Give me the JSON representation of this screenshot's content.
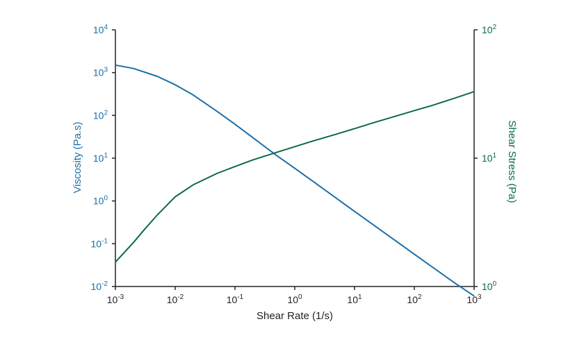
{
  "chart_data": {
    "type": "line",
    "title": "",
    "xlabel": "Shear Rate (1/s)",
    "ylabel_left": "Viscosity (Pa.s)",
    "ylabel_right": "Shear Stress (Pa)",
    "x_scale": "log",
    "y_left_scale": "log",
    "y_right_scale": "log",
    "xlim": [
      0.001,
      1000
    ],
    "ylim_left": [
      0.01,
      10000
    ],
    "ylim_right": [
      1,
      100
    ],
    "x_ticks": [
      {
        "base": "10",
        "exp": "-3"
      },
      {
        "base": "10",
        "exp": "-2"
      },
      {
        "base": "10",
        "exp": "-1"
      },
      {
        "base": "10",
        "exp": "0"
      },
      {
        "base": "10",
        "exp": "1"
      },
      {
        "base": "10",
        "exp": "2"
      },
      {
        "base": "10",
        "exp": "3"
      }
    ],
    "y_left_ticks": [
      {
        "base": "10",
        "exp": "-2"
      },
      {
        "base": "10",
        "exp": "-1"
      },
      {
        "base": "10",
        "exp": "0"
      },
      {
        "base": "10",
        "exp": "1"
      },
      {
        "base": "10",
        "exp": "2"
      },
      {
        "base": "10",
        "exp": "3"
      },
      {
        "base": "10",
        "exp": "4"
      }
    ],
    "y_right_ticks": [
      {
        "base": "10",
        "exp": "0"
      },
      {
        "base": "10",
        "exp": "1"
      },
      {
        "base": "10",
        "exp": "2"
      }
    ],
    "grid": false,
    "legend": "none",
    "colors": {
      "axis": "#222222",
      "viscosity": "#1a6fa8",
      "stress": "#0a6b45"
    },
    "series": [
      {
        "axis": "left",
        "x": [
          0.001,
          0.002,
          0.005,
          0.01,
          0.02,
          0.05,
          0.1,
          0.2,
          0.5,
          1,
          2,
          5,
          10,
          20,
          50,
          100,
          200,
          500,
          1000
        ],
        "values": [
          1500,
          1250,
          820,
          520,
          300,
          125,
          62,
          30,
          11.5,
          5.8,
          2.9,
          1.15,
          0.57,
          0.285,
          0.114,
          0.057,
          0.0285,
          0.0115,
          0.006
        ]
      },
      {
        "axis": "right",
        "x": [
          0.001,
          0.002,
          0.003,
          0.005,
          0.01,
          0.02,
          0.05,
          0.1,
          0.2,
          0.5,
          1,
          2,
          5,
          10,
          20,
          50,
          100,
          200,
          500,
          1000
        ],
        "values": [
          1.55,
          2.2,
          2.75,
          3.6,
          5.0,
          6.2,
          7.6,
          8.6,
          9.7,
          11.1,
          12.3,
          13.6,
          15.4,
          17.0,
          18.8,
          21.3,
          23.5,
          25.8,
          29.6,
          33
        ]
      }
    ]
  }
}
